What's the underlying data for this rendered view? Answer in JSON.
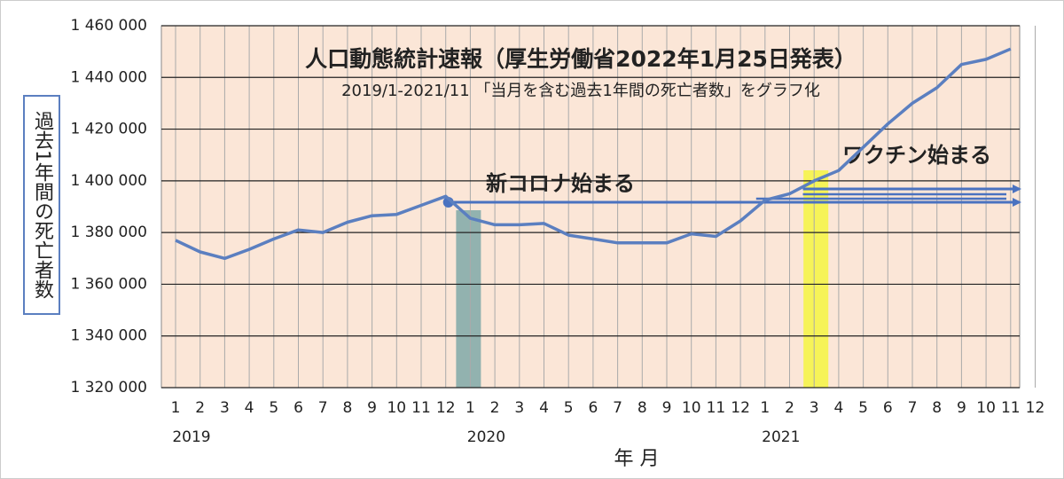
{
  "chart_data": {
    "type": "line",
    "title": "人口動態統計速報（厚生労働省2022年1月25日発表）",
    "subtitle": "2019/1-2021/11 「当月を含む過去1年間の死亡者数」をグラフ化",
    "y_axis_label": "過去1年間の死亡者数",
    "x_axis_label": "年 月",
    "categories": [
      "1",
      "2",
      "3",
      "4",
      "5",
      "6",
      "7",
      "8",
      "9",
      "10",
      "11",
      "12",
      "1",
      "2",
      "3",
      "4",
      "5",
      "6",
      "7",
      "8",
      "9",
      "10",
      "11",
      "12",
      "1",
      "2",
      "3",
      "4",
      "5",
      "6",
      "7",
      "8",
      "9",
      "10",
      "11",
      "12"
    ],
    "x_groups": [
      "2019",
      "2020",
      "2021"
    ],
    "series": [
      {
        "name": "過去1年間の死亡者数",
        "color": "#5b7fc0",
        "values": [
          1377000,
          1372500,
          1370000,
          1373500,
          1377500,
          1381000,
          1380000,
          1384000,
          1386500,
          1387000,
          1390500,
          1394000,
          1385500,
          1383000,
          1383000,
          1383500,
          1379000,
          1377500,
          1376000,
          1376000,
          1376000,
          1379500,
          1378500,
          1384500,
          1392500,
          1395000,
          1400000,
          1404000,
          1413000,
          1422000,
          1430000,
          1436000,
          1445000,
          1447000,
          1451000,
          null
        ]
      }
    ],
    "annotations": [
      "新コロナ始まる",
      "ワクチン始まる"
    ],
    "ylim": [
      1320000,
      1460000
    ],
    "yticks": [
      {
        "value": 1320000,
        "label": "1 320 000"
      },
      {
        "value": 1340000,
        "label": "1 340 000"
      },
      {
        "value": 1360000,
        "label": "1 360 000"
      },
      {
        "value": 1380000,
        "label": "1 380 000"
      },
      {
        "value": 1400000,
        "label": "1 400 000"
      },
      {
        "value": 1420000,
        "label": "1 420 000"
      },
      {
        "value": 1440000,
        "label": "1 440 000"
      },
      {
        "value": 1460000,
        "label": "1 460 000"
      }
    ],
    "grid": true,
    "plot_background": "#fbe6d7"
  }
}
